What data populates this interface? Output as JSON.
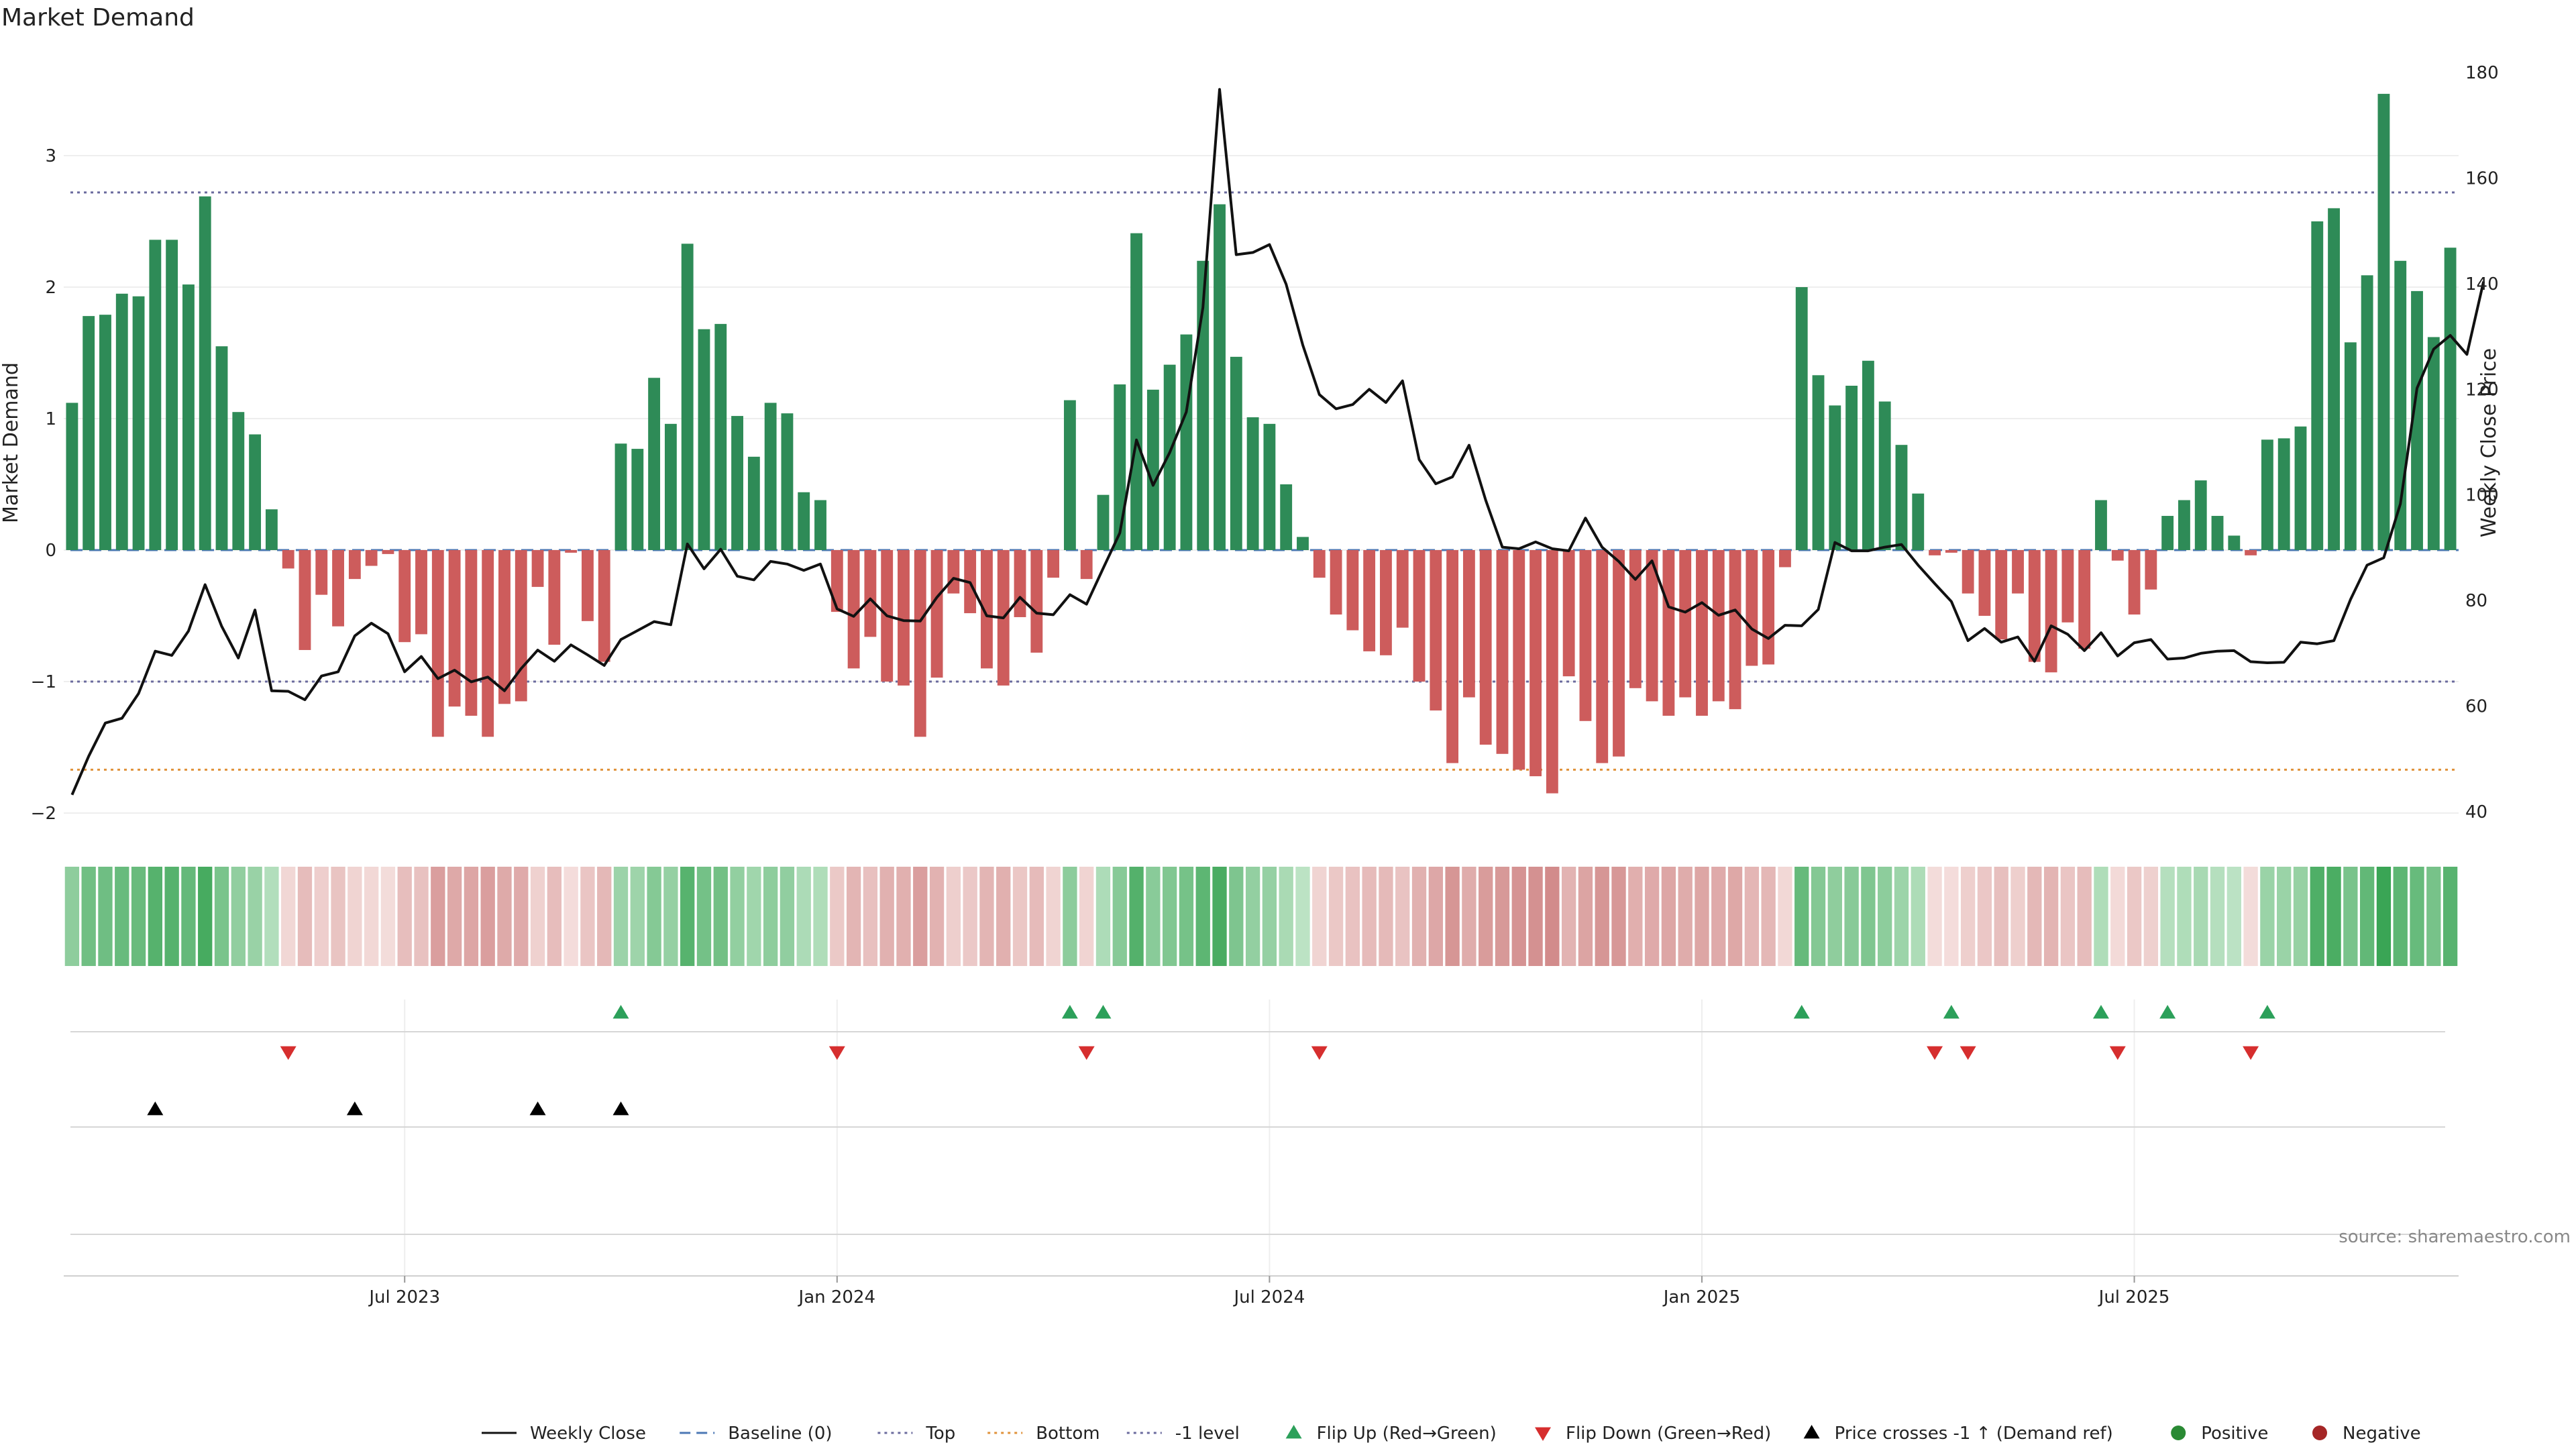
{
  "chart_data": {
    "type": "bar",
    "title": "Market Demand",
    "ylabel": "Market Demand",
    "y2label": "Weekly Close Price",
    "ylim": [
      -2.2,
      3.6
    ],
    "y2lim": [
      35,
      185
    ],
    "yticks": [
      "3",
      "2",
      "1",
      "0",
      "−1",
      "−2"
    ],
    "y2ticks": [
      "180",
      "160",
      "140",
      "120",
      "100",
      "80",
      "60",
      "40"
    ],
    "xticks": [
      "Jul 2023",
      "Jan 2024",
      "Jul 2024",
      "Jan 2025",
      "Jul 2025"
    ],
    "reference_lines": [
      {
        "name": "Top",
        "value": 2.72
      },
      {
        "name": "-1 level",
        "value": -1.0
      },
      {
        "name": "Bottom",
        "value": -1.67
      },
      {
        "name": "Baseline (0)",
        "value": 0
      }
    ],
    "demand": [
      1.12,
      1.78,
      1.79,
      1.95,
      1.93,
      2.36,
      2.36,
      2.02,
      2.69,
      1.55,
      1.05,
      0.88,
      0.31,
      -0.14,
      -0.76,
      -0.34,
      -0.58,
      -0.22,
      -0.12,
      -0.03,
      -0.7,
      -0.64,
      -1.42,
      -1.19,
      -1.26,
      -1.42,
      -1.17,
      -1.15,
      -0.28,
      -0.72,
      -0.02,
      -0.54,
      -0.85,
      0.81,
      0.77,
      1.31,
      0.96,
      2.33,
      1.68,
      1.72,
      1.02,
      0.71,
      1.12,
      1.04,
      0.44,
      0.38,
      -0.47,
      -0.9,
      -0.66,
      -1.0,
      -1.03,
      -1.42,
      -0.97,
      -0.33,
      -0.48,
      -0.9,
      -1.03,
      -0.51,
      -0.78,
      -0.21,
      1.14,
      -0.22,
      0.42,
      1.26,
      2.41,
      1.22,
      1.41,
      1.64,
      2.2,
      2.63,
      1.47,
      1.01,
      0.96,
      0.5,
      0.1,
      -0.21,
      -0.49,
      -0.61,
      -0.77,
      -0.8,
      -0.59,
      -1.0,
      -1.22,
      -1.62,
      -1.12,
      -1.48,
      -1.55,
      -1.67,
      -1.72,
      -1.85,
      -0.96,
      -1.3,
      -1.62,
      -1.57,
      -1.05,
      -1.15,
      -1.26,
      -1.12,
      -1.26,
      -1.15,
      -1.21,
      -0.88,
      -0.87,
      -0.13,
      2.0,
      1.33,
      1.1,
      1.25,
      1.44,
      1.13,
      0.8,
      0.43,
      -0.04,
      -0.02,
      -0.33,
      -0.5,
      -0.68,
      -0.33,
      -0.85,
      -0.93,
      -0.55,
      -0.75,
      0.38,
      -0.08,
      -0.49,
      -0.3,
      0.26,
      0.38,
      0.53,
      0.26,
      0.11,
      -0.04,
      0.84,
      0.85,
      0.94,
      2.5,
      2.6,
      1.58,
      2.09,
      3.47,
      2.2,
      1.97,
      1.62,
      2.3
    ],
    "weekly_close": [
      43.2,
      50.5,
      56.8,
      57.7,
      62.4,
      70.4,
      69.6,
      74.2,
      83.0,
      75.1,
      69.1,
      78.2,
      62.9,
      62.8,
      61.2,
      65.7,
      66.5,
      73.3,
      75.7,
      73.7,
      66.5,
      69.4,
      65.2,
      66.8,
      64.6,
      65.5,
      62.9,
      67.1,
      70.6,
      68.5,
      71.6,
      69.7,
      67.7,
      72.6,
      74.3,
      76.0,
      75.4,
      90.7,
      86.0,
      89.7,
      84.6,
      83.9,
      87.4,
      86.9,
      85.7,
      86.9,
      78.4,
      77.0,
      80.3,
      77.1,
      76.2,
      76.1,
      80.6,
      84.2,
      83.4,
      77.1,
      76.7,
      80.6,
      77.6,
      77.3,
      81.1,
      79.3,
      86.1,
      92.8,
      110.4,
      101.8,
      108.0,
      115.7,
      135.5,
      176.8,
      145.5,
      145.9,
      147.4,
      139.9,
      128.4,
      119.0,
      116.3,
      117.1,
      120.0,
      117.5,
      121.6,
      106.7,
      102.1,
      103.4,
      109.4,
      99.0,
      90.1,
      89.8,
      91.1,
      89.8,
      89.4,
      95.6,
      90.1,
      87.4,
      84.0,
      87.5,
      78.8,
      77.8,
      79.6,
      77.2,
      78.2,
      74.6,
      72.8,
      75.3,
      75.2,
      78.3,
      91.0,
      89.4,
      89.4,
      90.1,
      90.6,
      86.7,
      83.2,
      79.8,
      72.4,
      74.7,
      72.1,
      73.1,
      68.5,
      75.2,
      73.6,
      70.5,
      73.9,
      69.5,
      72.0,
      72.6,
      68.9,
      69.1,
      70.0,
      70.4,
      70.5,
      68.4,
      68.2,
      68.3,
      72.1,
      71.8,
      72.4,
      80.2,
      86.7,
      88.1,
      98.3,
      120.2,
      127.6,
      130.2,
      126.6,
      140.4
    ],
    "flip_up_weeks": [
      33,
      60,
      62,
      104,
      113,
      122,
      126,
      132
    ],
    "flip_down_weeks": [
      13,
      46,
      61,
      75,
      112,
      114,
      123,
      131
    ],
    "price_cross_weeks": [
      5,
      17,
      28,
      33
    ],
    "legend": [
      {
        "label": "Weekly Close",
        "style": "line-solid",
        "color": "#111111"
      },
      {
        "label": "Baseline (0)",
        "style": "line-dashed",
        "color": "#4c78b5"
      },
      {
        "label": "Top",
        "style": "line-dotted",
        "color": "#6b6b9e"
      },
      {
        "label": "Bottom",
        "style": "line-dotted",
        "color": "#e0923a"
      },
      {
        "label": "-1 level",
        "style": "line-dotted",
        "color": "#6b6b9e"
      },
      {
        "label": "Flip Up (Red→Green)",
        "style": "tri-up",
        "color": "#2ca05a"
      },
      {
        "label": "Flip Down (Green→Red)",
        "style": "tri-down",
        "color": "#d62e2e"
      },
      {
        "label": "Price crosses -1 ↑ (Demand ref)",
        "style": "tri-up",
        "color": "#000000"
      },
      {
        "label": "Positive",
        "style": "dot",
        "color": "#2a8a34"
      },
      {
        "label": "Negative",
        "style": "dot",
        "color": "#a52626"
      }
    ],
    "source": "source: sharemaestro.com"
  },
  "colors": {
    "positive": "#2e8b57",
    "negative": "#cd5c5c",
    "price": "#111111",
    "grid": "#eeeeee",
    "top_line": "#6b6b9e",
    "bottom_line": "#e0923a",
    "baseline": "#4c78b5"
  }
}
